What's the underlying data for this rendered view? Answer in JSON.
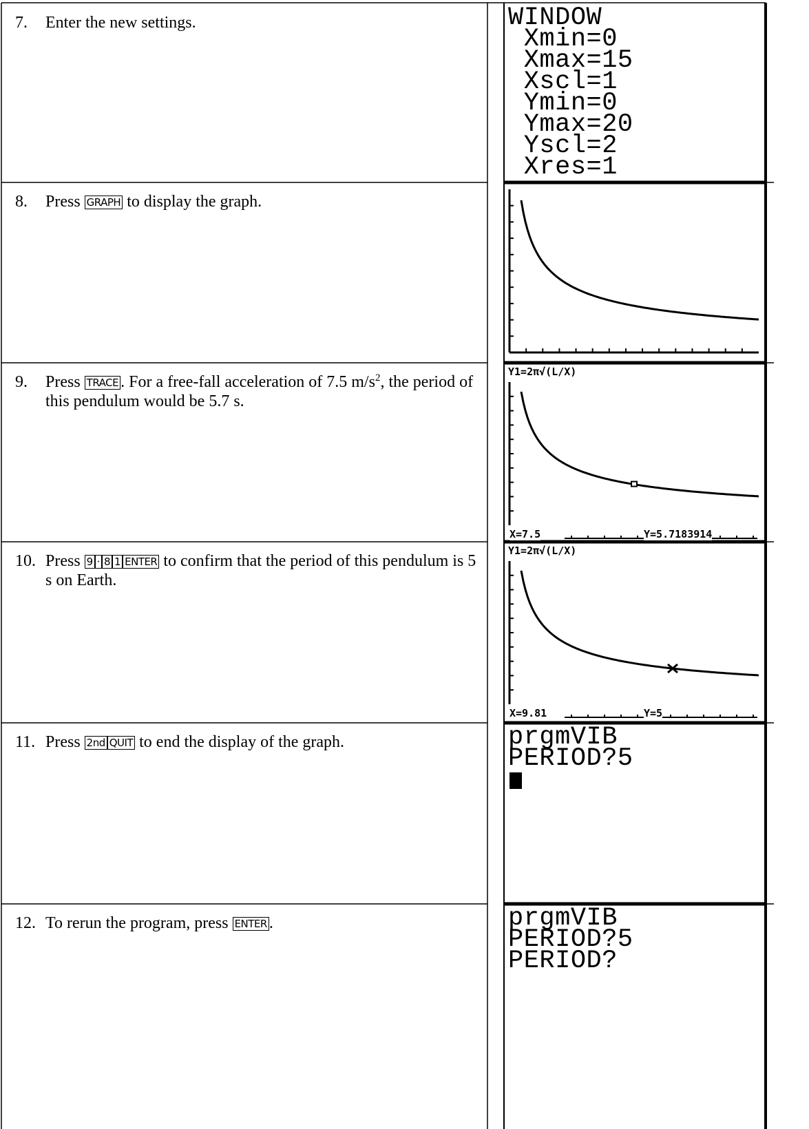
{
  "steps": [
    {
      "number": "7.",
      "parts": [
        {
          "text": "Enter the new settings."
        }
      ]
    },
    {
      "number": "8.",
      "parts": [
        {
          "text": "Press "
        },
        {
          "key": "GRAPH"
        },
        {
          "text": " to display the graph."
        }
      ]
    },
    {
      "number": "9.",
      "parts": [
        {
          "text": "Press "
        },
        {
          "key": "TRACE"
        },
        {
          "text": ". For a free-fall acceleration of 7.5 m/s"
        },
        {
          "sup": "2"
        },
        {
          "text": ", the period of this pendulum would be 5.7 s."
        }
      ]
    },
    {
      "number": "10.",
      "parts": [
        {
          "text": "Press "
        },
        {
          "key": "9"
        },
        {
          "key": "·"
        },
        {
          "key": "8"
        },
        {
          "key": "1"
        },
        {
          "key": "ENTER"
        },
        {
          "text": " to confirm that the period of this pendulum is 5 s on Earth."
        }
      ]
    },
    {
      "number": "11.",
      "parts": [
        {
          "text": "Press "
        },
        {
          "key": "2nd"
        },
        {
          "key": "QUIT"
        },
        {
          "text": " to end the display of the graph."
        }
      ]
    },
    {
      "number": "12.",
      "parts": [
        {
          "text": "To rerun the program, press "
        },
        {
          "key": "ENTER"
        },
        {
          "text": "."
        }
      ]
    }
  ],
  "screens": [
    {
      "kind": "text",
      "lines": [
        "WINDOW",
        " Xmin=0",
        " Xmax=15",
        " Xscl=1",
        " Ymin=0",
        " Ymax=20",
        " Yscl=2",
        " Xres=1"
      ]
    },
    {
      "kind": "graph"
    },
    {
      "kind": "trace",
      "header": "Y1=2π√(L/X)",
      "x_readout": "X=7.5",
      "y_readout": "Y=5.7183914",
      "marker": "square"
    },
    {
      "kind": "trace",
      "header": "Y1=2π√(L/X)",
      "x_readout": "X=9.81",
      "y_readout": "Y=5",
      "marker": "cross"
    },
    {
      "kind": "text",
      "lines": [
        "prgmVIB",
        "PERIOD?5"
      ],
      "cursor": true
    },
    {
      "kind": "text",
      "lines": [
        "prgmVIB",
        "PERIOD?5",
        "PERIOD?"
      ]
    }
  ]
}
